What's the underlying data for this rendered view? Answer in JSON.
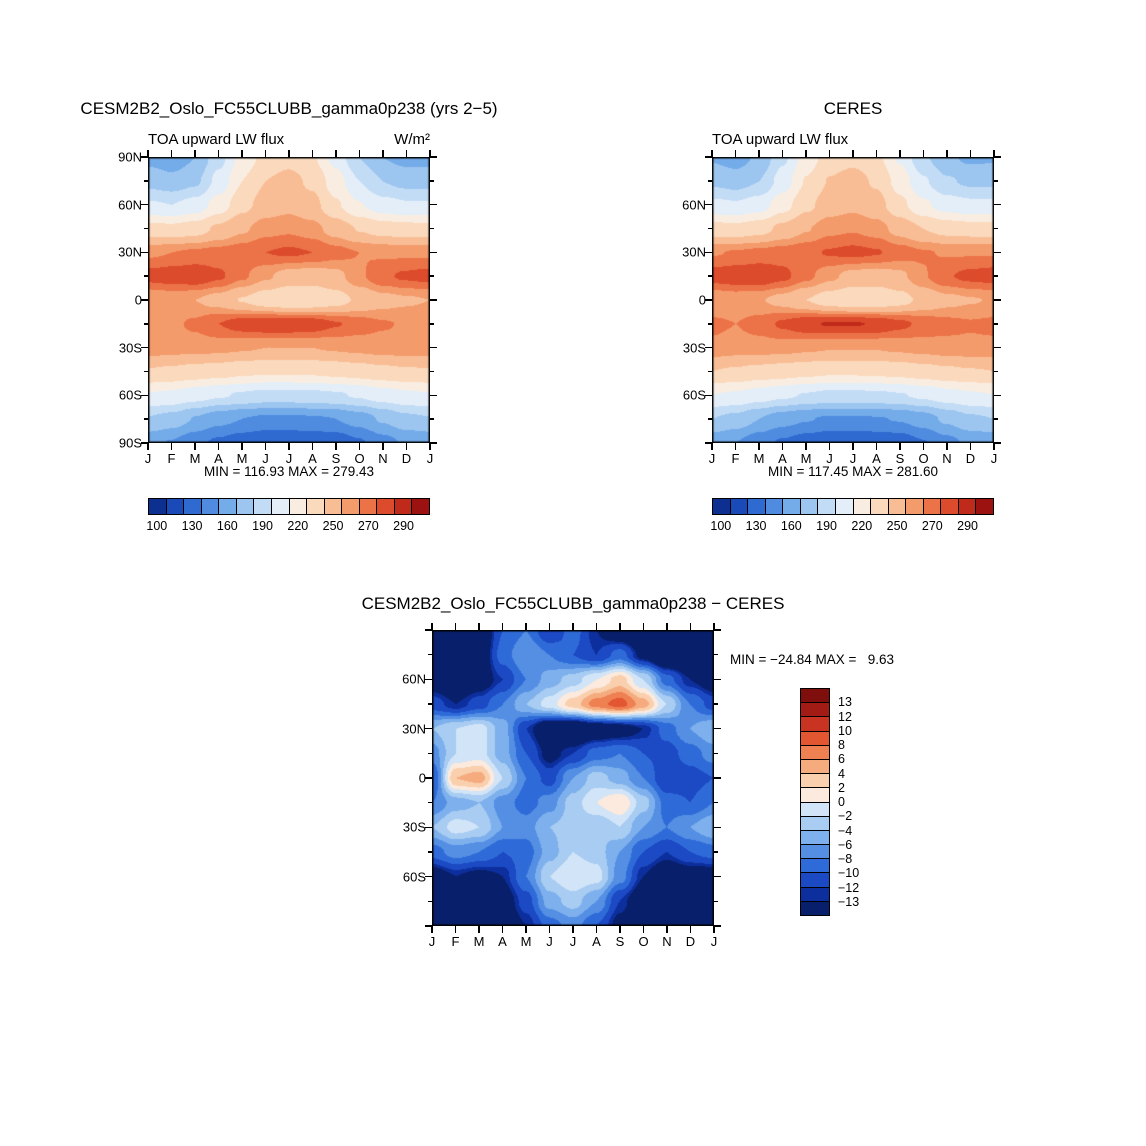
{
  "chart_data": [
    {
      "id": "model",
      "type": "heatmap",
      "title": "CESM2B2_Oslo_FC55CLUBB_gamma0p238 (yrs 2−5)",
      "left_string": "TOA upward LW flux",
      "right_string": "W/m²",
      "x_labels": [
        "J",
        "F",
        "M",
        "A",
        "M",
        "J",
        "J",
        "A",
        "S",
        "O",
        "N",
        "D",
        "J"
      ],
      "lat_range": [
        90,
        -90
      ],
      "ytick_lats": [
        90,
        60,
        30,
        0,
        -30,
        -60,
        -90
      ],
      "ytick_labels": [
        "90N",
        "60N",
        "30N",
        "0",
        "30S",
        "60S",
        "90S"
      ],
      "min": 116.93,
      "max": 279.43,
      "minmax_text": "MIN = 116.93 MAX = 279.43",
      "levels": [
        100,
        115,
        130,
        145,
        160,
        175,
        190,
        205,
        220,
        235,
        250,
        260,
        270,
        280,
        290
      ],
      "colors": [
        "#0d2f8f",
        "#1a49b8",
        "#2f6ad0",
        "#4f8ce0",
        "#74abe9",
        "#9cc6f0",
        "#c3dcf5",
        "#e4eef8",
        "#f9ede1",
        "#fbd9bd",
        "#f9bd95",
        "#f49b6c",
        "#ec7347",
        "#dc4b2c",
        "#c02a1b",
        "#9c1210"
      ],
      "colorbar_labels": [
        "100",
        "130",
        "160",
        "190",
        "220",
        "250",
        "270",
        "290"
      ],
      "colorbar_label_boxes": [
        0,
        2,
        4,
        6,
        8,
        10,
        12,
        14
      ],
      "grid": [
        [
          155,
          150,
          160,
          185,
          210,
          225,
          230,
          222,
          200,
          175,
          160,
          155,
          155
        ],
        [
          170,
          165,
          172,
          195,
          220,
          235,
          240,
          232,
          212,
          190,
          175,
          170,
          170
        ],
        [
          192,
          190,
          196,
          212,
          230,
          242,
          246,
          240,
          222,
          206,
          196,
          192,
          192
        ],
        [
          225,
          224,
          228,
          238,
          248,
          256,
          258,
          254,
          244,
          234,
          228,
          226,
          225
        ],
        [
          258,
          260,
          262,
          264,
          266,
          270,
          272,
          270,
          264,
          260,
          258,
          258,
          258
        ],
        [
          274,
          276,
          278,
          272,
          262,
          252,
          244,
          242,
          246,
          258,
          268,
          272,
          274
        ],
        [
          250,
          252,
          250,
          244,
          234,
          225,
          220,
          222,
          228,
          238,
          245,
          248,
          250
        ],
        [
          260,
          258,
          262,
          270,
          276,
          279,
          279,
          277,
          271,
          265,
          261,
          259,
          260
        ],
        [
          257,
          255,
          255,
          254,
          252,
          250,
          250,
          250,
          252,
          254,
          256,
          257,
          257
        ],
        [
          234,
          232,
          229,
          227,
          224,
          222,
          222,
          223,
          225,
          228,
          231,
          233,
          234
        ],
        [
          204,
          202,
          197,
          192,
          188,
          185,
          185,
          186,
          188,
          192,
          198,
          202,
          204
        ],
        [
          174,
          169,
          159,
          150,
          145,
          142,
          142,
          143,
          145,
          152,
          162,
          171,
          174
        ],
        [
          149,
          144,
          134,
          127,
          121,
          117,
          117,
          118,
          120,
          128,
          139,
          147,
          149
        ]
      ]
    },
    {
      "id": "ceres",
      "type": "heatmap",
      "title": "CERES",
      "left_string": "TOA upward LW flux",
      "right_string": "",
      "x_labels": [
        "J",
        "F",
        "M",
        "A",
        "M",
        "J",
        "J",
        "A",
        "S",
        "O",
        "N",
        "D",
        "J"
      ],
      "lat_range": [
        90,
        -90
      ],
      "ytick_lats": [
        60,
        30,
        0,
        -30,
        -60
      ],
      "ytick_labels": [
        "60N",
        "30N",
        "0",
        "30S",
        "60S"
      ],
      "min": 117.45,
      "max": 281.6,
      "minmax_text": "MIN = 117.45 MAX = 281.60",
      "levels": [
        100,
        115,
        130,
        145,
        160,
        175,
        190,
        205,
        220,
        235,
        250,
        260,
        270,
        280,
        290
      ],
      "colors": [
        "#0d2f8f",
        "#1a49b8",
        "#2f6ad0",
        "#4f8ce0",
        "#74abe9",
        "#9cc6f0",
        "#c3dcf5",
        "#e4eef8",
        "#f9ede1",
        "#fbd9bd",
        "#f9bd95",
        "#f49b6c",
        "#ec7347",
        "#dc4b2c",
        "#c02a1b",
        "#9c1210"
      ],
      "colorbar_labels": [
        "100",
        "130",
        "160",
        "190",
        "220",
        "250",
        "270",
        "290"
      ],
      "colorbar_label_boxes": [
        0,
        2,
        4,
        6,
        8,
        10,
        12,
        14
      ],
      "grid": [
        [
          158,
          153,
          163,
          187,
          212,
          227,
          231,
          224,
          203,
          178,
          163,
          157,
          158
        ],
        [
          172,
          168,
          175,
          197,
          221,
          236,
          241,
          233,
          214,
          192,
          177,
          172,
          172
        ],
        [
          194,
          192,
          198,
          214,
          231,
          243,
          247,
          241,
          224,
          208,
          198,
          194,
          194
        ],
        [
          226,
          225,
          229,
          239,
          249,
          257,
          259,
          255,
          245,
          235,
          229,
          227,
          226
        ],
        [
          259,
          261,
          263,
          265,
          267,
          271,
          273,
          271,
          265,
          261,
          259,
          259,
          259
        ],
        [
          275,
          277,
          279,
          273,
          263,
          253,
          245,
          243,
          247,
          259,
          269,
          273,
          275
        ],
        [
          251,
          253,
          251,
          245,
          235,
          226,
          221,
          223,
          229,
          239,
          246,
          249,
          251
        ],
        [
          262,
          260,
          264,
          272,
          278,
          281,
          281,
          279,
          273,
          267,
          263,
          261,
          262
        ],
        [
          258,
          256,
          256,
          255,
          253,
          251,
          251,
          251,
          253,
          255,
          257,
          258,
          258
        ],
        [
          235,
          233,
          230,
          228,
          225,
          223,
          223,
          224,
          226,
          229,
          232,
          234,
          235
        ],
        [
          205,
          203,
          198,
          193,
          189,
          186,
          186,
          187,
          189,
          193,
          199,
          203,
          205
        ],
        [
          175,
          170,
          160,
          151,
          146,
          143,
          143,
          144,
          146,
          153,
          163,
          172,
          175
        ],
        [
          150,
          145,
          135,
          128,
          122,
          118,
          117,
          119,
          121,
          129,
          140,
          148,
          150
        ]
      ]
    },
    {
      "id": "diff",
      "type": "heatmap",
      "title": "CESM2B2_Oslo_FC55CLUBB_gamma0p238 − CERES",
      "left_string": "",
      "right_string": "",
      "x_labels": [
        "J",
        "F",
        "M",
        "A",
        "M",
        "J",
        "J",
        "A",
        "S",
        "O",
        "N",
        "D",
        "J"
      ],
      "lat_range": [
        90,
        -90
      ],
      "ytick_lats": [
        60,
        30,
        0,
        -30,
        -60
      ],
      "ytick_labels": [
        "60N",
        "30N",
        "0",
        "30S",
        "60S"
      ],
      "min": -24.84,
      "max": 9.63,
      "minmax_text": "MIN = −24.84 MAX =   9.63",
      "levels": [
        -13,
        -12,
        -10,
        -8,
        -6,
        -4,
        -2,
        0,
        2,
        4,
        6,
        8,
        10,
        12,
        13
      ],
      "colors": [
        "#081f6b",
        "#0d2f9e",
        "#1c49c4",
        "#2f6bd8",
        "#548fe4",
        "#7db0ec",
        "#a8ccf2",
        "#d2e4f7",
        "#fbeadd",
        "#f9cfae",
        "#f5ab7e",
        "#ee8052",
        "#e25632",
        "#c83421",
        "#a31b15",
        "#7f0f0d"
      ],
      "colorbar_labels": [
        "13",
        "12",
        "10",
        "8",
        "6",
        "4",
        "2",
        "0",
        "−2",
        "−4",
        "−6",
        "−8",
        "−10",
        "−12",
        "−13"
      ],
      "grid": [
        [
          -16,
          -19,
          -17,
          -10,
          -8,
          -12,
          -9,
          -13,
          -16,
          -19,
          -20,
          -18,
          -16
        ],
        [
          -18,
          -20,
          -16,
          -9,
          -6,
          -8,
          -10,
          -12,
          -9,
          -14,
          -18,
          -19,
          -18
        ],
        [
          -15,
          -17,
          -15,
          -12,
          -8,
          -5,
          -3,
          0,
          3,
          -2,
          -9,
          -13,
          -15
        ],
        [
          -11,
          -13,
          -11,
          -8,
          -4,
          -1,
          3,
          7,
          9,
          5,
          -2,
          -8,
          -11
        ],
        [
          -4,
          -2,
          -1,
          -5,
          -12,
          -17,
          -18,
          -16,
          -15,
          -13,
          -9,
          -6,
          -4
        ],
        [
          -7,
          -2,
          -1,
          -5,
          -10,
          -14,
          -12,
          -9,
          -8,
          -10,
          -11,
          -9,
          -7
        ],
        [
          -10,
          4,
          5,
          -2,
          -8,
          -11,
          -6,
          -3,
          -5,
          -8,
          -12,
          -11,
          -10
        ],
        [
          -8,
          -5,
          -4,
          -7,
          -9,
          -7,
          -3,
          0,
          2,
          -3,
          -9,
          -10,
          -8
        ],
        [
          -4,
          -1,
          -2,
          -6,
          -7,
          -4,
          -3,
          -4,
          -2,
          -6,
          -8,
          -6,
          -4
        ],
        [
          -9,
          -7,
          -8,
          -10,
          -9,
          -5,
          -2,
          -3,
          -6,
          -10,
          -12,
          -10,
          -9
        ],
        [
          -15,
          -13,
          -14,
          -13,
          -8,
          -2,
          0,
          -1,
          -7,
          -13,
          -16,
          -15,
          -15
        ],
        [
          -17,
          -15,
          -16,
          -15,
          -11,
          -5,
          -3,
          -6,
          -12,
          -16,
          -18,
          -17,
          -17
        ],
        [
          -14,
          -16,
          -18,
          -16,
          -13,
          -9,
          -7,
          -10,
          -14,
          -17,
          -15,
          -14,
          -14
        ]
      ]
    }
  ]
}
